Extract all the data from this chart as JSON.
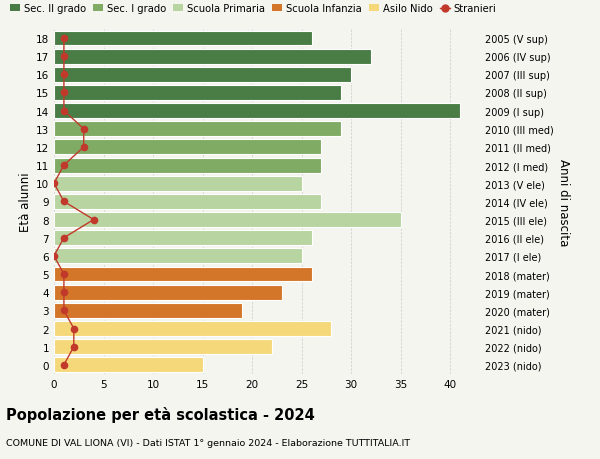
{
  "ages": [
    18,
    17,
    16,
    15,
    14,
    13,
    12,
    11,
    10,
    9,
    8,
    7,
    6,
    5,
    4,
    3,
    2,
    1,
    0
  ],
  "values": [
    26,
    32,
    30,
    29,
    41,
    29,
    27,
    27,
    25,
    27,
    35,
    26,
    25,
    26,
    23,
    19,
    28,
    22,
    15
  ],
  "stranieri": [
    1,
    1,
    1,
    1,
    1,
    3,
    3,
    1,
    0,
    1,
    4,
    1,
    0,
    1,
    1,
    1,
    2,
    2,
    1
  ],
  "right_labels": [
    "2005 (V sup)",
    "2006 (IV sup)",
    "2007 (III sup)",
    "2008 (II sup)",
    "2009 (I sup)",
    "2010 (III med)",
    "2011 (II med)",
    "2012 (I med)",
    "2013 (V ele)",
    "2014 (IV ele)",
    "2015 (III ele)",
    "2016 (II ele)",
    "2017 (I ele)",
    "2018 (mater)",
    "2019 (mater)",
    "2020 (mater)",
    "2021 (nido)",
    "2022 (nido)",
    "2023 (nido)"
  ],
  "colors": {
    "sec_ii": "#4a7c45",
    "sec_i": "#80ab65",
    "primaria": "#b8d4a0",
    "infanzia": "#d4762a",
    "nido": "#f5d87a",
    "stranieri": "#c0392b"
  },
  "legend_labels": [
    "Sec. II grado",
    "Sec. I grado",
    "Scuola Primaria",
    "Scuola Infanzia",
    "Asilo Nido",
    "Stranieri"
  ],
  "title": "Popolazione per età scolastica - 2024",
  "subtitle": "COMUNE DI VAL LIONA (VI) - Dati ISTAT 1° gennaio 2024 - Elaborazione TUTTITALIA.IT",
  "ylabel_left": "Età alunni",
  "ylabel_right": "Anni di nascita",
  "xlim": [
    0,
    43
  ],
  "xticks": [
    0,
    5,
    10,
    15,
    20,
    25,
    30,
    35,
    40
  ],
  "background_color": "#f5f5f0"
}
